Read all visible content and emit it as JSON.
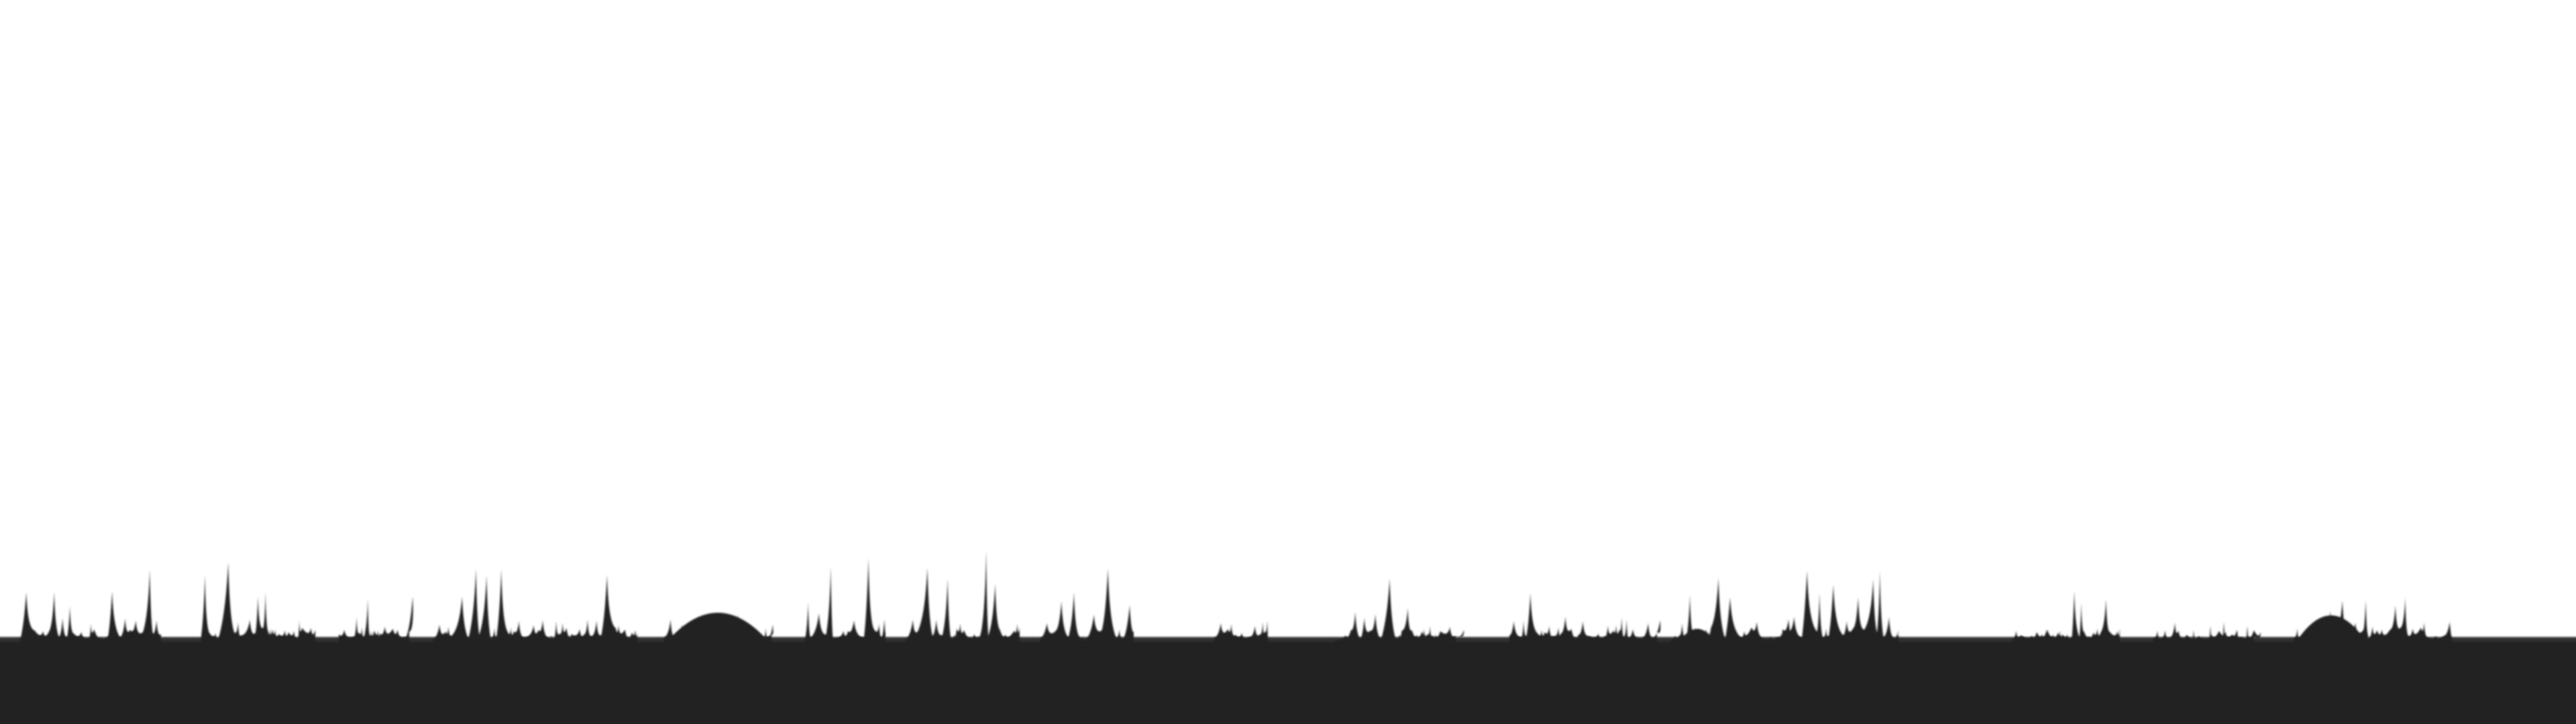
{
  "scene": {
    "kind": "grass-silhouette-horizon",
    "colors": {
      "sky": "#ffffff",
      "ground": "#222222",
      "grass": "#222222"
    }
  }
}
